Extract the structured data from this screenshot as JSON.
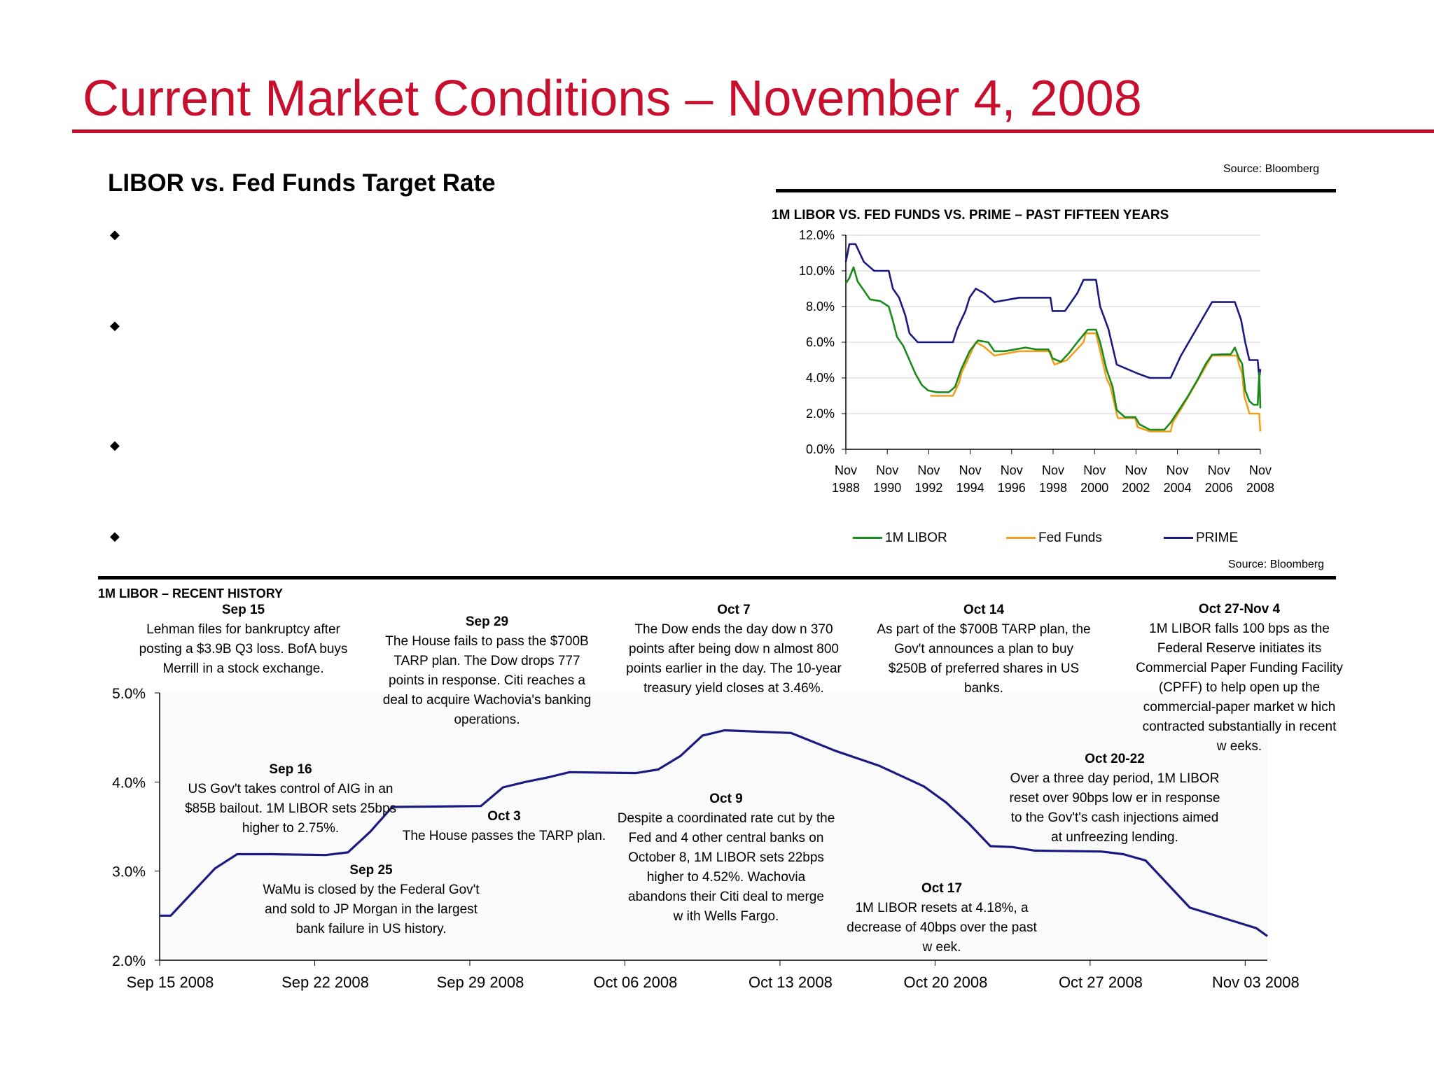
{
  "page": {
    "title": "Current Market Conditions – November 4, 2008",
    "subtitle": "LIBOR vs. Fed Funds Target Rate",
    "bullets": [
      "",
      "",
      "",
      ""
    ],
    "source_top": "Source:  Bloomberg",
    "source_mid": "Source:  Bloomberg"
  },
  "colors": {
    "title_red": "#c8102e",
    "libor": "#1a8a1a",
    "fed": "#f0a020",
    "prime": "#1a1a80",
    "recent": "#1a1a80"
  },
  "chart_data": [
    {
      "type": "line",
      "title": "1M LIBOR VS. FED FUNDS VS. PRIME – PAST FIFTEEN YEARS",
      "x_ticks": [
        [
          "Nov",
          "1988"
        ],
        [
          "Nov",
          "1990"
        ],
        [
          "Nov",
          "1992"
        ],
        [
          "Nov",
          "1994"
        ],
        [
          "Nov",
          "1996"
        ],
        [
          "Nov",
          "1998"
        ],
        [
          "Nov",
          "2000"
        ],
        [
          "Nov",
          "2002"
        ],
        [
          "Nov",
          "2004"
        ],
        [
          "Nov",
          "2006"
        ],
        [
          "Nov",
          "2008"
        ]
      ],
      "y_ticks": [
        "0.0%",
        "2.0%",
        "4.0%",
        "6.0%",
        "8.0%",
        "10.0%",
        "12.0%"
      ],
      "ylim": [
        0,
        12
      ],
      "xlim": [
        1988.83,
        2008.83
      ],
      "grid": true,
      "legend_position": "bottom",
      "series": [
        {
          "name": "1M LIBOR",
          "points": [
            [
              1988.83,
              9.3
            ],
            [
              1989.0,
              9.6
            ],
            [
              1989.2,
              10.2
            ],
            [
              1989.4,
              9.4
            ],
            [
              1989.7,
              8.9
            ],
            [
              1990.0,
              8.4
            ],
            [
              1990.5,
              8.3
            ],
            [
              1990.9,
              8.0
            ],
            [
              1991.1,
              7.2
            ],
            [
              1991.3,
              6.3
            ],
            [
              1991.6,
              5.8
            ],
            [
              1991.9,
              5.0
            ],
            [
              1992.2,
              4.2
            ],
            [
              1992.5,
              3.6
            ],
            [
              1992.8,
              3.3
            ],
            [
              1993.2,
              3.2
            ],
            [
              1993.8,
              3.2
            ],
            [
              1994.1,
              3.5
            ],
            [
              1994.4,
              4.5
            ],
            [
              1994.8,
              5.5
            ],
            [
              1995.2,
              6.1
            ],
            [
              1995.7,
              6.0
            ],
            [
              1996.0,
              5.5
            ],
            [
              1996.5,
              5.5
            ],
            [
              1997.0,
              5.6
            ],
            [
              1997.5,
              5.7
            ],
            [
              1998.0,
              5.6
            ],
            [
              1998.6,
              5.6
            ],
            [
              1998.8,
              5.1
            ],
            [
              1999.2,
              4.9
            ],
            [
              1999.6,
              5.4
            ],
            [
              2000.0,
              6.0
            ],
            [
              2000.5,
              6.7
            ],
            [
              2000.9,
              6.7
            ],
            [
              2001.1,
              6.0
            ],
            [
              2001.4,
              4.5
            ],
            [
              2001.7,
              3.5
            ],
            [
              2001.9,
              2.2
            ],
            [
              2002.3,
              1.8
            ],
            [
              2002.8,
              1.8
            ],
            [
              2003.0,
              1.4
            ],
            [
              2003.5,
              1.1
            ],
            [
              2004.2,
              1.1
            ],
            [
              2004.5,
              1.5
            ],
            [
              2004.9,
              2.2
            ],
            [
              2005.3,
              2.9
            ],
            [
              2005.8,
              3.9
            ],
            [
              2006.2,
              4.8
            ],
            [
              2006.5,
              5.3
            ],
            [
              2007.0,
              5.32
            ],
            [
              2007.4,
              5.32
            ],
            [
              2007.6,
              5.7
            ],
            [
              2007.8,
              5.1
            ],
            [
              2007.95,
              4.8
            ],
            [
              2008.1,
              3.3
            ],
            [
              2008.3,
              2.7
            ],
            [
              2008.5,
              2.5
            ],
            [
              2008.7,
              2.5
            ],
            [
              2008.78,
              4.3
            ],
            [
              2008.83,
              2.3
            ]
          ]
        },
        {
          "name": "Fed Funds",
          "points": [
            [
              1992.9,
              3.0
            ],
            [
              1994.0,
              3.0
            ],
            [
              1994.1,
              3.25
            ],
            [
              1994.3,
              3.75
            ],
            [
              1994.4,
              4.25
            ],
            [
              1994.6,
              4.75
            ],
            [
              1994.9,
              5.5
            ],
            [
              1995.1,
              6.0
            ],
            [
              1995.5,
              5.75
            ],
            [
              1996.0,
              5.25
            ],
            [
              1997.2,
              5.5
            ],
            [
              1998.7,
              5.5
            ],
            [
              1998.8,
              5.0
            ],
            [
              1998.9,
              4.75
            ],
            [
              1999.5,
              5.0
            ],
            [
              1999.9,
              5.5
            ],
            [
              2000.3,
              6.0
            ],
            [
              2000.4,
              6.5
            ],
            [
              2000.9,
              6.5
            ],
            [
              2001.0,
              6.0
            ],
            [
              2001.2,
              5.0
            ],
            [
              2001.4,
              4.0
            ],
            [
              2001.6,
              3.5
            ],
            [
              2001.8,
              2.5
            ],
            [
              2001.95,
              1.75
            ],
            [
              2002.8,
              1.75
            ],
            [
              2002.9,
              1.25
            ],
            [
              2003.5,
              1.0
            ],
            [
              2004.5,
              1.0
            ],
            [
              2004.6,
              1.5
            ],
            [
              2005.0,
              2.25
            ],
            [
              2005.5,
              3.25
            ],
            [
              2006.0,
              4.25
            ],
            [
              2006.5,
              5.25
            ],
            [
              2007.7,
              5.25
            ],
            [
              2007.8,
              4.75
            ],
            [
              2007.95,
              4.25
            ],
            [
              2008.05,
              3.0
            ],
            [
              2008.25,
              2.25
            ],
            [
              2008.3,
              2.0
            ],
            [
              2008.78,
              2.0
            ],
            [
              2008.8,
              1.5
            ],
            [
              2008.83,
              1.0
            ]
          ]
        },
        {
          "name": "PRIME",
          "points": [
            [
              1988.83,
              10.5
            ],
            [
              1989.0,
              11.5
            ],
            [
              1989.3,
              11.5
            ],
            [
              1989.5,
              11.0
            ],
            [
              1989.7,
              10.5
            ],
            [
              1990.2,
              10.0
            ],
            [
              1990.9,
              10.0
            ],
            [
              1991.1,
              9.0
            ],
            [
              1991.4,
              8.5
            ],
            [
              1991.7,
              7.5
            ],
            [
              1991.9,
              6.5
            ],
            [
              1992.3,
              6.0
            ],
            [
              1993.0,
              6.0
            ],
            [
              1994.0,
              6.0
            ],
            [
              1994.2,
              6.75
            ],
            [
              1994.4,
              7.25
            ],
            [
              1994.6,
              7.75
            ],
            [
              1994.8,
              8.5
            ],
            [
              1995.1,
              9.0
            ],
            [
              1995.5,
              8.75
            ],
            [
              1996.0,
              8.25
            ],
            [
              1997.2,
              8.5
            ],
            [
              1998.7,
              8.5
            ],
            [
              1998.8,
              7.75
            ],
            [
              1999.4,
              7.75
            ],
            [
              1999.7,
              8.25
            ],
            [
              2000.0,
              8.75
            ],
            [
              2000.3,
              9.5
            ],
            [
              2000.9,
              9.5
            ],
            [
              2001.1,
              8.0
            ],
            [
              2001.5,
              6.75
            ],
            [
              2001.9,
              4.75
            ],
            [
              2002.9,
              4.25
            ],
            [
              2003.5,
              4.0
            ],
            [
              2004.5,
              4.0
            ],
            [
              2005.0,
              5.25
            ],
            [
              2005.5,
              6.25
            ],
            [
              2006.0,
              7.25
            ],
            [
              2006.5,
              8.25
            ],
            [
              2007.6,
              8.25
            ],
            [
              2007.9,
              7.25
            ],
            [
              2008.1,
              6.0
            ],
            [
              2008.3,
              5.0
            ],
            [
              2008.7,
              5.0
            ],
            [
              2008.78,
              4.0
            ],
            [
              2008.83,
              4.5
            ]
          ]
        }
      ]
    },
    {
      "type": "line",
      "title": "1M LIBOR – RECENT HISTORY",
      "x_ticks": [
        "Sep 15 2008",
        "Sep 22 2008",
        "Sep 29 2008",
        "Oct 06 2008",
        "Oct 13 2008",
        "Oct 20 2008",
        "Oct 27 2008",
        "Nov 03 2008"
      ],
      "y_ticks": [
        "2.0%",
        "3.0%",
        "4.0%",
        "5.0%"
      ],
      "ylim": [
        2,
        5
      ],
      "xlim_days": [
        0,
        50
      ],
      "series": [
        {
          "name": "1M LIBOR",
          "points": [
            [
              0,
              2.5
            ],
            [
              0.5,
              2.5
            ],
            [
              2.5,
              3.03
            ],
            [
              3.5,
              3.19
            ],
            [
              5,
              3.19
            ],
            [
              7.5,
              3.18
            ],
            [
              8.5,
              3.21
            ],
            [
              9.5,
              3.44
            ],
            [
              10.5,
              3.72
            ],
            [
              14.5,
              3.73
            ],
            [
              15.5,
              3.94
            ],
            [
              16.5,
              4.0
            ],
            [
              17.5,
              4.05
            ],
            [
              18.5,
              4.11
            ],
            [
              21.5,
              4.1
            ],
            [
              22.5,
              4.14
            ],
            [
              23.5,
              4.29
            ],
            [
              24.5,
              4.52
            ],
            [
              25.5,
              4.58
            ],
            [
              28.5,
              4.55
            ],
            [
              29.5,
              4.45
            ],
            [
              30.5,
              4.35
            ],
            [
              32.5,
              4.18
            ],
            [
              34.5,
              3.95
            ],
            [
              35.5,
              3.77
            ],
            [
              36.5,
              3.54
            ],
            [
              37.5,
              3.28
            ],
            [
              38.5,
              3.27
            ],
            [
              39.5,
              3.23
            ],
            [
              42.5,
              3.22
            ],
            [
              43.5,
              3.19
            ],
            [
              44.5,
              3.12
            ],
            [
              46.5,
              2.59
            ],
            [
              49.5,
              2.36
            ],
            [
              50,
              2.27
            ]
          ]
        }
      ],
      "annotations": [
        {
          "head": "Sep 15",
          "lines": [
            "Lehman files for bankruptcy after",
            "posting a $3.9B Q3 loss. BofA buys",
            "Merrill in a stock exchange."
          ]
        },
        {
          "head": "Sep 29",
          "lines": [
            "The House fails to pass the $700B",
            "TARP plan. The Dow drops 777",
            "points in response. Citi reaches a",
            "deal to acquire Wachovia's banking",
            "operations."
          ]
        },
        {
          "head": "Oct 7",
          "lines": [
            "The Dow ends the day dow n 370",
            "points after being dow n almost 800",
            "points earlier in the day. The 10-year",
            "treasury yield closes at 3.46%."
          ]
        },
        {
          "head": "Oct 14",
          "lines": [
            "As part of the $700B TARP plan, the",
            "Gov't announces a plan to buy",
            "$250B of preferred shares in US",
            "banks."
          ]
        },
        {
          "head": "Oct 27-Nov 4",
          "lines": [
            "1M LIBOR falls 100 bps as the",
            "Federal Reserve initiates its",
            "Commercial Paper Funding Facility",
            "(CPFF) to help open up the",
            "commercial-paper market w hich",
            "contracted substantially in recent",
            "w eeks."
          ]
        },
        {
          "head": "Sep 16",
          "lines": [
            "US Gov't takes control of AIG in an",
            "$85B bailout. 1M LIBOR sets 25bps",
            "higher to 2.75%."
          ]
        },
        {
          "head": "Oct 3",
          "lines": [
            "The House passes the TARP plan."
          ]
        },
        {
          "head": "Oct 9",
          "lines": [
            "Despite a coordinated rate cut by the",
            "Fed and 4 other central banks on",
            "October 8, 1M LIBOR sets 22bps",
            "higher to 4.52%. Wachovia",
            "abandons their Citi deal to merge",
            "w ith Wells Fargo."
          ]
        },
        {
          "head": "Oct 20-22",
          "lines": [
            "Over a three day period, 1M LIBOR",
            "reset over 90bps low er in response",
            "to the Gov't's cash injections aimed",
            "at unfreezing lending."
          ]
        },
        {
          "head": "Sep 25",
          "lines": [
            "WaMu is closed by the Federal Gov't",
            "and sold to JP Morgan in the largest",
            "bank failure in US history."
          ]
        },
        {
          "head": "Oct 17",
          "lines": [
            "1M LIBOR resets at 4.18%, a",
            "decrease of 40bps over the past",
            "w eek."
          ]
        }
      ]
    }
  ]
}
